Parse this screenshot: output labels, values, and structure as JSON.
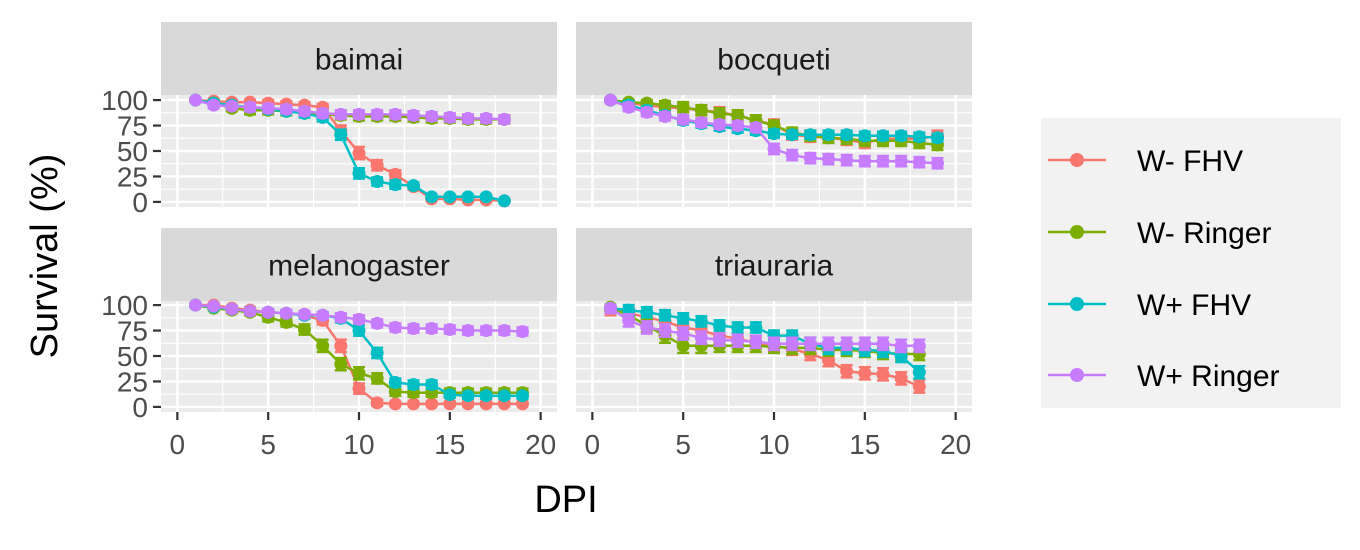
{
  "chart_data": {
    "type": "line",
    "xlabel": "DPI",
    "ylabel": "Survival (%)",
    "xlim": [
      0,
      20
    ],
    "ylim": [
      0,
      100
    ],
    "xticks": [
      "0",
      "5",
      "10",
      "15",
      "20"
    ],
    "yticks": [
      "0",
      "25",
      "50",
      "75",
      "100"
    ],
    "grid": true,
    "legend_position": "right",
    "legend": [
      {
        "name": "W- FHV",
        "color": "#F8766D"
      },
      {
        "name": "W- Ringer",
        "color": "#7CAE00"
      },
      {
        "name": "W+ FHV",
        "color": "#00BFC4"
      },
      {
        "name": "W+ Ringer",
        "color": "#C77CFF"
      }
    ],
    "panels": [
      {
        "title": "baimai",
        "series": [
          {
            "name": "W- FHV",
            "x": [
              1,
              2,
              3,
              4,
              5,
              6,
              7,
              8,
              9,
              10,
              11,
              12,
              13,
              14,
              15,
              16,
              17,
              18
            ],
            "y": [
              100,
              99,
              98,
              98,
              97,
              96,
              95,
              93,
              70,
              48,
              36,
              27,
              15,
              3,
              3,
              2,
              2,
              1
            ],
            "err": [
              2,
              2,
              3,
              3,
              3,
              3,
              3,
              3,
              5,
              6,
              5,
              4,
              3,
              2,
              2,
              2,
              2,
              1
            ]
          },
          {
            "name": "W- Ringer",
            "x": [
              1,
              2,
              3,
              4,
              5,
              6,
              7,
              8,
              9,
              10,
              11,
              12,
              13,
              14,
              15,
              16,
              17,
              18
            ],
            "y": [
              100,
              97,
              92,
              90,
              90,
              89,
              87,
              86,
              85,
              84,
              84,
              84,
              83,
              82,
              82,
              81,
              81,
              81
            ],
            "err": [
              2,
              3,
              3,
              4,
              4,
              4,
              4,
              4,
              4,
              4,
              4,
              4,
              4,
              4,
              4,
              4,
              4,
              4
            ]
          },
          {
            "name": "W+ FHV",
            "x": [
              1,
              2,
              3,
              4,
              5,
              6,
              7,
              8,
              9,
              10,
              11,
              12,
              13,
              14,
              15,
              16,
              17,
              18
            ],
            "y": [
              100,
              97,
              95,
              93,
              91,
              89,
              87,
              83,
              66,
              28,
              20,
              17,
              16,
              5,
              5,
              5,
              5,
              1
            ],
            "err": [
              2,
              3,
              3,
              3,
              3,
              3,
              4,
              4,
              5,
              5,
              4,
              4,
              3,
              2,
              2,
              2,
              2,
              1
            ]
          },
          {
            "name": "W+ Ringer",
            "x": [
              1,
              2,
              3,
              4,
              5,
              6,
              7,
              8,
              9,
              10,
              11,
              12,
              13,
              14,
              15,
              16,
              17,
              18
            ],
            "y": [
              100,
              95,
              94,
              93,
              92,
              91,
              89,
              87,
              86,
              86,
              86,
              86,
              85,
              84,
              83,
              82,
              82,
              81
            ],
            "err": [
              2,
              3,
              3,
              4,
              4,
              4,
              4,
              4,
              4,
              4,
              4,
              4,
              4,
              4,
              4,
              4,
              4,
              4
            ]
          }
        ]
      },
      {
        "title": "bocqueti",
        "series": [
          {
            "name": "W- FHV",
            "x": [
              1,
              2,
              3,
              4,
              5,
              6,
              7,
              8,
              9,
              10,
              11,
              12,
              13,
              14,
              15,
              16,
              17,
              18,
              19
            ],
            "y": [
              100,
              97,
              95,
              93,
              92,
              90,
              88,
              85,
              80,
              76,
              66,
              64,
              63,
              61,
              58,
              62,
              62,
              62,
              65
            ],
            "err": [
              3,
              4,
              4,
              4,
              4,
              4,
              5,
              5,
              5,
              5,
              5,
              5,
              5,
              5,
              5,
              5,
              5,
              5,
              5
            ]
          },
          {
            "name": "W- Ringer",
            "x": [
              1,
              2,
              3,
              4,
              5,
              6,
              7,
              8,
              9,
              10,
              11,
              12,
              13,
              14,
              15,
              16,
              17,
              18,
              19
            ],
            "y": [
              100,
              98,
              97,
              95,
              93,
              90,
              87,
              85,
              80,
              75,
              68,
              65,
              63,
              62,
              60,
              60,
              60,
              58,
              56
            ],
            "err": [
              3,
              4,
              4,
              4,
              5,
              5,
              5,
              5,
              5,
              5,
              5,
              5,
              5,
              5,
              5,
              5,
              5,
              5,
              5
            ]
          },
          {
            "name": "W+ FHV",
            "x": [
              1,
              2,
              3,
              4,
              5,
              6,
              7,
              8,
              9,
              10,
              11,
              12,
              13,
              14,
              15,
              16,
              17,
              18,
              19
            ],
            "y": [
              100,
              95,
              90,
              85,
              80,
              77,
              74,
              72,
              70,
              67,
              66,
              66,
              66,
              66,
              65,
              65,
              65,
              64,
              63
            ],
            "err": [
              3,
              4,
              4,
              4,
              4,
              4,
              4,
              4,
              4,
              4,
              4,
              4,
              4,
              4,
              4,
              4,
              4,
              4,
              4
            ]
          },
          {
            "name": "W+ Ringer",
            "x": [
              1,
              2,
              3,
              4,
              5,
              6,
              7,
              8,
              9,
              10,
              11,
              12,
              13,
              14,
              15,
              16,
              17,
              18,
              19
            ],
            "y": [
              100,
              93,
              88,
              84,
              81,
              78,
              76,
              75,
              73,
              52,
              46,
              43,
              42,
              41,
              40,
              40,
              40,
              39,
              38
            ],
            "err": [
              3,
              4,
              4,
              4,
              4,
              4,
              4,
              4,
              4,
              5,
              5,
              5,
              5,
              5,
              5,
              5,
              5,
              5,
              5
            ]
          }
        ]
      },
      {
        "title": "melanogaster",
        "series": [
          {
            "name": "W- FHV",
            "x": [
              1,
              2,
              3,
              4,
              5,
              6,
              7,
              8,
              9,
              10,
              11,
              12,
              13,
              14,
              15,
              16,
              17,
              18,
              19
            ],
            "y": [
              100,
              100,
              97,
              95,
              93,
              92,
              90,
              85,
              60,
              18,
              4,
              3,
              3,
              3,
              3,
              3,
              3,
              3,
              3
            ],
            "err": [
              2,
              2,
              2,
              3,
              3,
              3,
              3,
              4,
              6,
              5,
              3,
              2,
              2,
              2,
              2,
              2,
              2,
              2,
              2
            ]
          },
          {
            "name": "W- Ringer",
            "x": [
              1,
              2,
              3,
              4,
              5,
              6,
              7,
              8,
              9,
              10,
              11,
              12,
              13,
              14,
              15,
              16,
              17,
              18,
              19
            ],
            "y": [
              100,
              97,
              95,
              93,
              88,
              83,
              76,
              60,
              42,
              33,
              28,
              15,
              14,
              14,
              14,
              14,
              14,
              14,
              14
            ],
            "err": [
              2,
              2,
              3,
              3,
              4,
              4,
              5,
              6,
              6,
              6,
              5,
              4,
              4,
              4,
              4,
              4,
              4,
              4,
              4
            ]
          },
          {
            "name": "W+ FHV",
            "x": [
              1,
              2,
              3,
              4,
              5,
              6,
              7,
              8,
              9,
              10,
              11,
              12,
              13,
              14,
              15,
              16,
              17,
              18,
              19
            ],
            "y": [
              100,
              98,
              96,
              94,
              93,
              92,
              90,
              90,
              87,
              75,
              53,
              24,
              22,
              22,
              12,
              11,
              11,
              11,
              11
            ],
            "err": [
              2,
              2,
              2,
              3,
              3,
              3,
              3,
              3,
              4,
              5,
              5,
              4,
              4,
              4,
              3,
              3,
              3,
              3,
              3
            ]
          },
          {
            "name": "W+ Ringer",
            "x": [
              1,
              2,
              3,
              4,
              5,
              6,
              7,
              8,
              9,
              10,
              11,
              12,
              13,
              14,
              15,
              16,
              17,
              18,
              19
            ],
            "y": [
              100,
              99,
              96,
              94,
              93,
              92,
              91,
              90,
              88,
              86,
              82,
              78,
              77,
              77,
              76,
              75,
              75,
              75,
              74
            ],
            "err": [
              2,
              2,
              3,
              3,
              3,
              3,
              3,
              3,
              4,
              4,
              4,
              4,
              4,
              4,
              4,
              4,
              4,
              4,
              4
            ]
          }
        ]
      },
      {
        "title": "triauraria",
        "series": [
          {
            "name": "W- FHV",
            "x": [
              1,
              2,
              3,
              4,
              5,
              6,
              7,
              8,
              9,
              10,
              11,
              12,
              13,
              14,
              15,
              16,
              17,
              18
            ],
            "y": [
              95,
              92,
              88,
              84,
              78,
              75,
              70,
              67,
              63,
              60,
              57,
              52,
              46,
              35,
              33,
              32,
              28,
              20
            ],
            "err": [
              5,
              6,
              6,
              6,
              6,
              6,
              6,
              6,
              6,
              6,
              6,
              6,
              6,
              6,
              6,
              6,
              6,
              6
            ]
          },
          {
            "name": "W- Ringer",
            "x": [
              1,
              2,
              3,
              4,
              5,
              6,
              7,
              8,
              9,
              10,
              11,
              12,
              13,
              14,
              15,
              16,
              17,
              18
            ],
            "y": [
              98,
              90,
              80,
              70,
              60,
              60,
              60,
              60,
              60,
              59,
              58,
              58,
              56,
              56,
              55,
              53,
              52,
              52
            ],
            "err": [
              5,
              6,
              6,
              7,
              7,
              7,
              6,
              6,
              6,
              6,
              6,
              6,
              6,
              6,
              6,
              6,
              6,
              6
            ]
          },
          {
            "name": "W+ FHV",
            "x": [
              1,
              2,
              3,
              4,
              5,
              6,
              7,
              8,
              9,
              10,
              11,
              12,
              13,
              14,
              15,
              16,
              17,
              18
            ],
            "y": [
              97,
              95,
              93,
              90,
              87,
              84,
              80,
              78,
              78,
              70,
              70,
              62,
              58,
              58,
              56,
              55,
              50,
              34
            ],
            "err": [
              5,
              5,
              5,
              5,
              5,
              5,
              5,
              5,
              5,
              5,
              5,
              6,
              6,
              6,
              6,
              6,
              6,
              6
            ]
          },
          {
            "name": "W+ Ringer",
            "x": [
              1,
              2,
              3,
              4,
              5,
              6,
              7,
              8,
              9,
              10,
              11,
              12,
              13,
              14,
              15,
              16,
              17,
              18
            ],
            "y": [
              97,
              85,
              78,
              75,
              72,
              68,
              66,
              65,
              64,
              62,
              62,
              62,
              62,
              62,
              62,
              62,
              60,
              60
            ],
            "err": [
              5,
              6,
              6,
              6,
              6,
              6,
              6,
              6,
              6,
              6,
              6,
              6,
              6,
              6,
              6,
              6,
              6,
              6
            ]
          }
        ]
      }
    ]
  }
}
